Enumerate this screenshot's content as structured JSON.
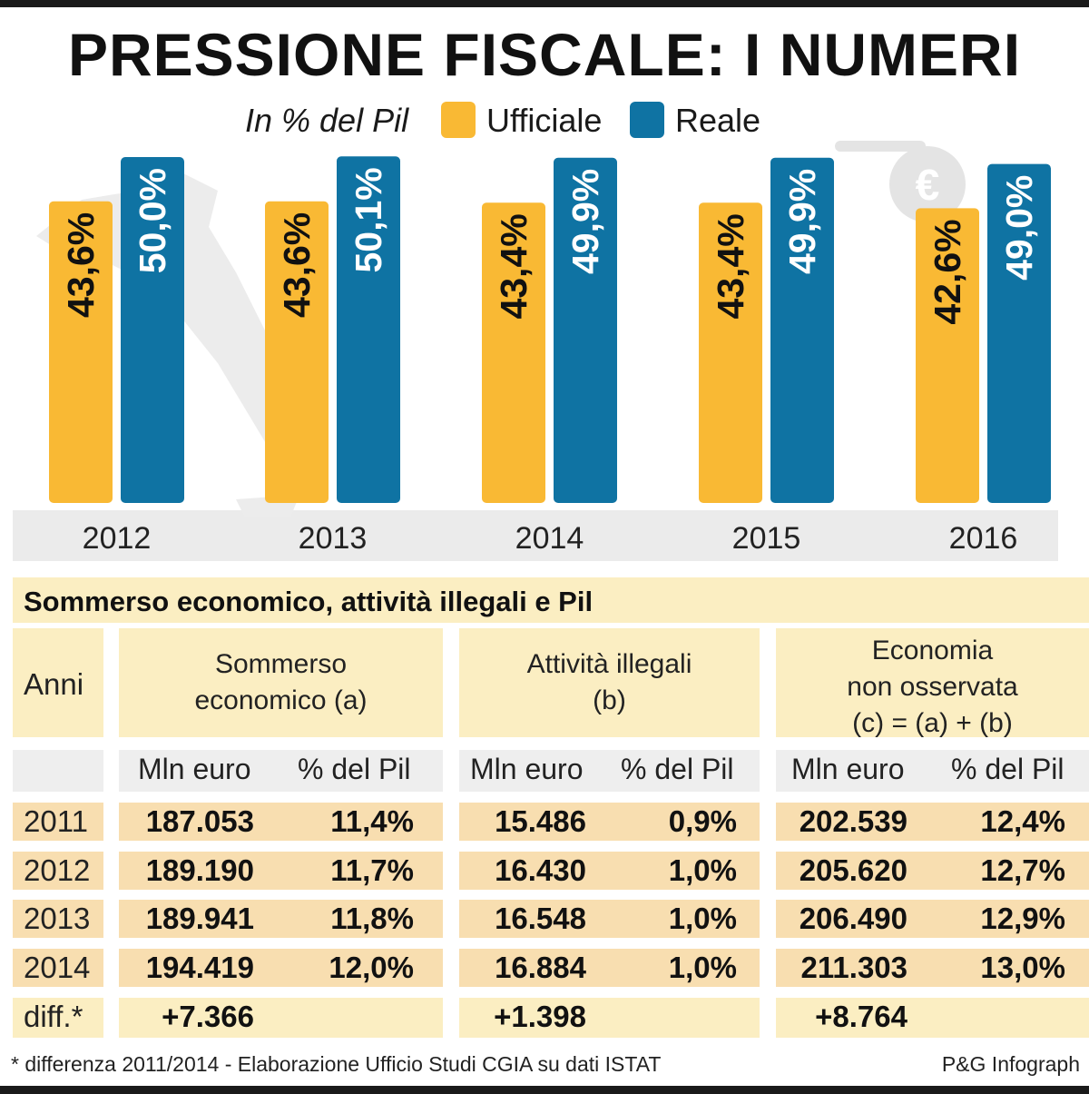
{
  "title": "PRESSIONE FISCALE: I NUMERI",
  "colors": {
    "ufficiale": "#f9b934",
    "reale": "#0f73a3",
    "table_header": "#fbeec2",
    "table_row": "#f8deb0"
  },
  "chart_data": {
    "type": "bar",
    "unit_label": "In % del Pil",
    "categories": [
      "2012",
      "2013",
      "2014",
      "2015",
      "2016"
    ],
    "series": [
      {
        "name": "Ufficiale",
        "values": [
          43.6,
          43.6,
          43.4,
          43.4,
          42.6
        ],
        "labels": [
          "43,6%",
          "43,6%",
          "43,4%",
          "43,4%",
          "42,6%"
        ]
      },
      {
        "name": "Reale",
        "values": [
          50.0,
          50.1,
          49.9,
          49.9,
          49.0
        ],
        "labels": [
          "50,0%",
          "50,1%",
          "49,9%",
          "49,9%",
          "49,0%"
        ]
      }
    ],
    "legend": "top",
    "grid": false
  },
  "table": {
    "title": "Sommerso economico, attività illegali e Pil",
    "col_anni": "Anni",
    "groups": [
      {
        "lines": [
          "Sommerso",
          "economico (a)"
        ]
      },
      {
        "lines": [
          "Attività illegali",
          "(b)"
        ]
      },
      {
        "lines": [
          "Economia",
          "non osservata",
          "(c) = (a) + (b)"
        ]
      }
    ],
    "sub_headers": [
      "Mln euro",
      "% del Pil"
    ],
    "rows": [
      {
        "year": "2011",
        "a_mln": "187.053",
        "a_pct": "11,4%",
        "b_mln": "15.486",
        "b_pct": "0,9%",
        "c_mln": "202.539",
        "c_pct": "12,4%"
      },
      {
        "year": "2012",
        "a_mln": "189.190",
        "a_pct": "11,7%",
        "b_mln": "16.430",
        "b_pct": "1,0%",
        "c_mln": "205.620",
        "c_pct": "12,7%"
      },
      {
        "year": "2013",
        "a_mln": "189.941",
        "a_pct": "11,8%",
        "b_mln": "16.548",
        "b_pct": "1,0%",
        "c_mln": "206.490",
        "c_pct": "12,9%"
      },
      {
        "year": "2014",
        "a_mln": "194.419",
        "a_pct": "12,0%",
        "b_mln": "16.884",
        "b_pct": "1,0%",
        "c_mln": "211.303",
        "c_pct": "13,0%"
      }
    ],
    "diff_row": {
      "label": "diff.*",
      "a": "+7.366",
      "b": "+1.398",
      "c": "+8.764"
    }
  },
  "footer": {
    "note": "* differenza 2011/2014 -  Elaborazione Ufficio Studi CGIA su dati ISTAT",
    "credit": "P&G Infograph"
  }
}
